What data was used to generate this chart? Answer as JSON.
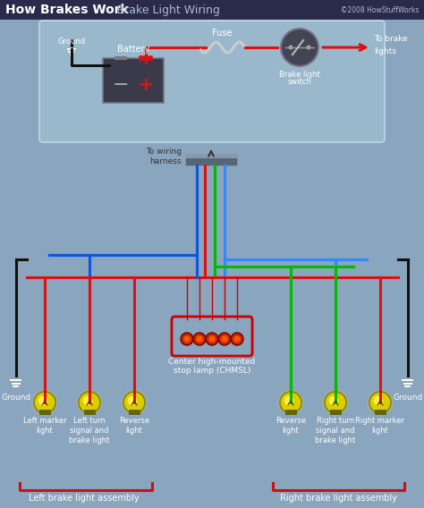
{
  "title_left": "How Brakes Work",
  "title_separator": " -  ",
  "title_right": "Brake Light Wiring",
  "copyright": "©2008 HowStuffWorks",
  "bg_color": "#8aa5be",
  "bg_lower": "#8aacbe",
  "title_bg": "#2a2a4a",
  "box_bg": "#9ab8cc",
  "box_border": "#b8cfe0",
  "battery_dark": "#3a3a3a",
  "battery_light": "#555566",
  "wire_red": "#dd1111",
  "wire_blue": "#1155dd",
  "wire_blue2": "#3388ff",
  "wire_green": "#00bb00",
  "wire_black": "#111111",
  "wire_white": "#dddddd",
  "bulb_outer": "#ddcc00",
  "bulb_inner": "#ffee44",
  "bulb_dark": "#88880000",
  "ground_color": "#ffffff",
  "label_color": "#ffffff",
  "label_dark": "#ccddee",
  "chmsl_red": "#cc0000",
  "bracket_color": "#cc1111",
  "connector_color": "#555566",
  "fuse_color": "#cccccc"
}
